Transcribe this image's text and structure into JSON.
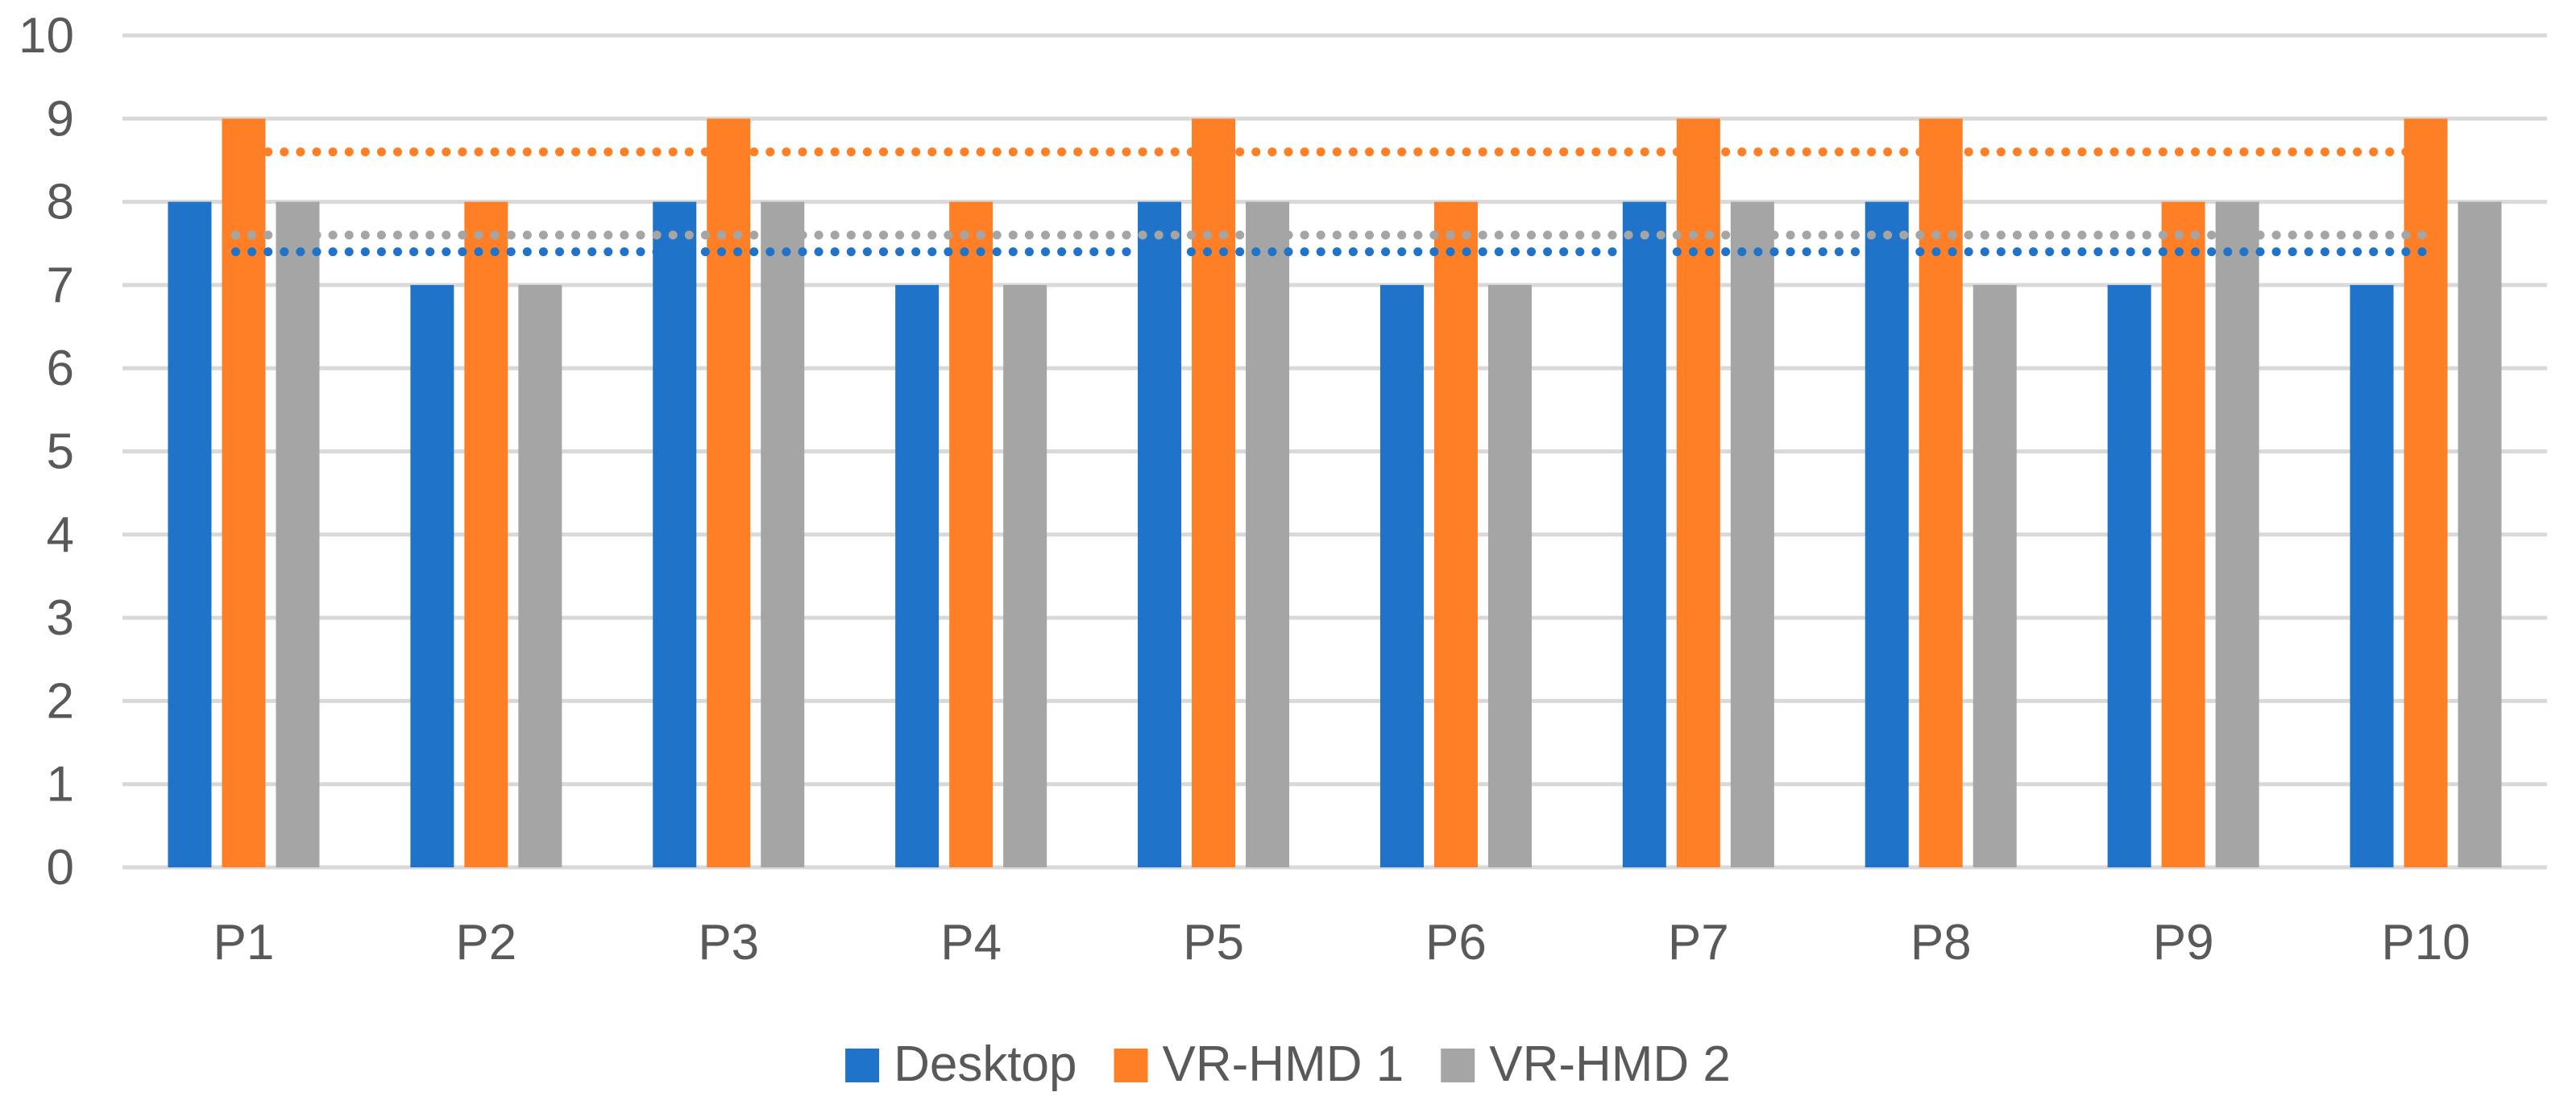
{
  "chart_data": {
    "type": "bar",
    "title": "",
    "xlabel": "",
    "ylabel": "",
    "ylim": [
      0,
      10
    ],
    "yticks": [
      "0",
      "1",
      "2",
      "3",
      "4",
      "5",
      "6",
      "7",
      "8",
      "9",
      "10"
    ],
    "grid": true,
    "legend_position": "bottom",
    "categories": [
      "P1",
      "P2",
      "P3",
      "P4",
      "P5",
      "P6",
      "P7",
      "P8",
      "P9",
      "P10"
    ],
    "series": [
      {
        "name": "Desktop",
        "color": "#1f73c8",
        "values": [
          8,
          7,
          8,
          7,
          8,
          7,
          8,
          8,
          7,
          7
        ],
        "mean": 7.4
      },
      {
        "name": "VR-HMD 1",
        "color": "#ff7f27",
        "values": [
          9,
          8,
          9,
          8,
          9,
          8,
          9,
          9,
          8,
          9
        ],
        "mean": 8.6
      },
      {
        "name": "VR-HMD 2",
        "color": "#a5a5a5",
        "values": [
          8,
          7,
          8,
          7,
          8,
          7,
          8,
          7,
          8,
          8
        ],
        "mean": 7.6
      }
    ],
    "annotations": [
      "dotted horizontal mean line for each series"
    ]
  }
}
